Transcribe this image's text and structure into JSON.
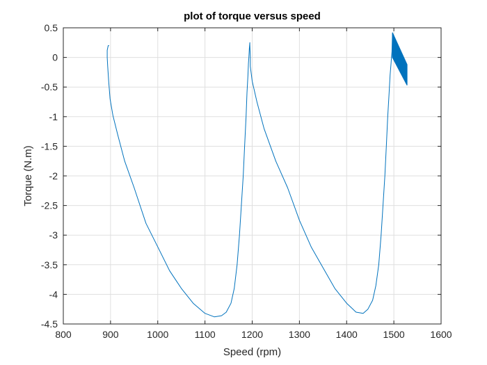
{
  "chart_data": {
    "type": "line",
    "title": "plot of torque versus speed",
    "xlabel": "Speed (rpm)",
    "ylabel": "Torque (N.m)",
    "xlim": [
      800,
      1600
    ],
    "ylim": [
      -4.5,
      0.5
    ],
    "xticks": [
      "800",
      "900",
      "1000",
      "1100",
      "1200",
      "1300",
      "1400",
      "1500",
      "1600"
    ],
    "yticks": [
      "0.5",
      "0",
      "-0.5",
      "-1",
      "-1.5",
      "-2",
      "-2.5",
      "-3",
      "-3.5",
      "-4",
      "-4.5"
    ],
    "grid": true,
    "legend": "none",
    "line_color": "#0072BD",
    "series": [
      {
        "x": [
          897,
          895,
          893,
          893,
          894,
          896,
          899,
          905,
          915,
          930,
          950,
          975,
          1000,
          1025,
          1050,
          1075,
          1100,
          1120,
          1135,
          1145,
          1155,
          1162,
          1168,
          1173,
          1177,
          1181,
          1184,
          1187,
          1189,
          1191,
          1192,
          1193,
          1194,
          1195,
          1195,
          1195,
          1196,
          1196,
          1200,
          1210,
          1225,
          1250,
          1275,
          1300,
          1325,
          1350,
          1375,
          1400,
          1420,
          1435,
          1445,
          1455,
          1462,
          1468,
          1473,
          1477,
          1481,
          1484,
          1487,
          1490,
          1492,
          1494,
          1495,
          1496,
          1497
        ],
        "y": [
          0.2,
          0.2,
          0.12,
          0.0,
          -0.15,
          -0.4,
          -0.7,
          -0.98,
          -1.3,
          -1.75,
          -2.2,
          -2.8,
          -3.2,
          -3.6,
          -3.9,
          -4.15,
          -4.32,
          -4.38,
          -4.36,
          -4.3,
          -4.15,
          -3.9,
          -3.5,
          -3.0,
          -2.5,
          -2.0,
          -1.5,
          -1.0,
          -0.6,
          -0.3,
          -0.1,
          0.0,
          0.15,
          0.25,
          0.25,
          0.22,
          0.0,
          -0.15,
          -0.4,
          -0.75,
          -1.2,
          -1.75,
          -2.2,
          -2.75,
          -3.2,
          -3.55,
          -3.9,
          -4.15,
          -4.3,
          -4.32,
          -4.25,
          -4.1,
          -3.85,
          -3.5,
          -3.0,
          -2.5,
          -2.0,
          -1.5,
          -1.0,
          -0.6,
          -0.3,
          -0.1,
          0.0,
          0.1,
          0.4
        ]
      }
    ],
    "band": {
      "x": [
        1497,
        1528,
        1528,
        1497
      ],
      "y": [
        0.42,
        -0.12,
        -0.47,
        0.0
      ]
    }
  }
}
